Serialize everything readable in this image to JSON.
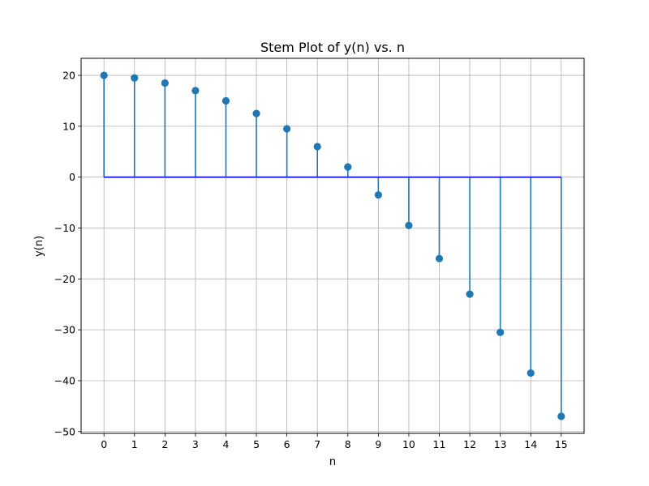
{
  "chart_data": {
    "type": "stem",
    "title": "Stem Plot of y(n) vs. n",
    "xlabel": "n",
    "ylabel": "y(n)",
    "x": [
      0,
      1,
      2,
      3,
      4,
      5,
      6,
      7,
      8,
      9,
      10,
      11,
      12,
      13,
      14,
      15
    ],
    "series": [
      {
        "values": [
          20,
          19.5,
          18.5,
          17,
          15,
          12.5,
          9.5,
          6,
          2,
          -3.5,
          -9.5,
          -16,
          -23,
          -30.5,
          -38.5,
          -47
        ]
      }
    ],
    "xlim": [
      -0.75,
      15.75
    ],
    "ylim": [
      -50.35,
      23.35
    ],
    "xticks": [
      "0",
      "1",
      "2",
      "3",
      "4",
      "5",
      "6",
      "7",
      "8",
      "9",
      "10",
      "11",
      "12",
      "13",
      "14",
      "15"
    ],
    "yticks": [
      20,
      10,
      0,
      -10,
      -20,
      -30,
      -40,
      -50
    ],
    "ytick_labels": [
      "20",
      "10",
      "0",
      "−10",
      "−20",
      "−30",
      "−40",
      "−50"
    ],
    "baseline": 0,
    "grid": true,
    "colors": {
      "marker": "#1f77b4",
      "stem": "#1f77b4",
      "baseline": "#0000ff",
      "grid": "#b0b0b0"
    }
  }
}
